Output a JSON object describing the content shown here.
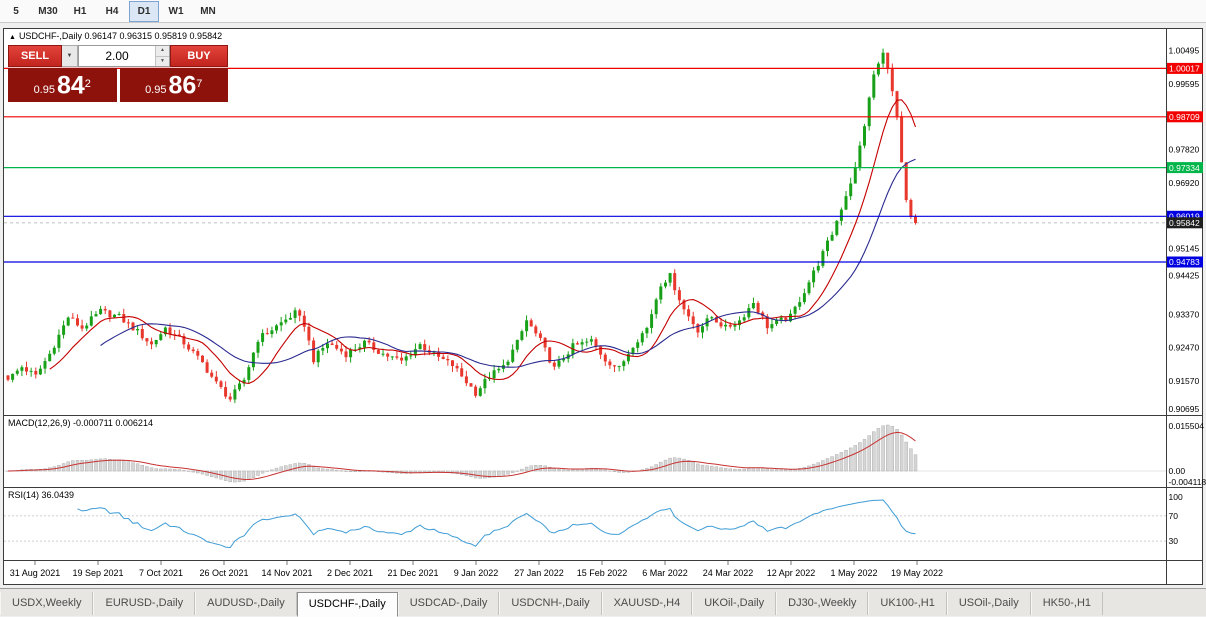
{
  "toolbar": {
    "timeframes": [
      {
        "label": "5",
        "active": false
      },
      {
        "label": "M30",
        "active": false
      },
      {
        "label": "H1",
        "active": false
      },
      {
        "label": "H4",
        "active": false
      },
      {
        "label": "D1",
        "active": true
      },
      {
        "label": "W1",
        "active": false
      },
      {
        "label": "MN",
        "active": false
      }
    ]
  },
  "symbol_header": {
    "marker": "▲",
    "symbol": "USDCHF-,Daily",
    "ohlc": "0.96147 0.96315 0.95819 0.95842"
  },
  "trade_panel": {
    "sell_label": "SELL",
    "buy_label": "BUY",
    "lot_size": "2.00",
    "dropdown_glyph": "▼",
    "spin_up_glyph": "▲",
    "spin_down_glyph": "▼",
    "bid": {
      "small": "0.95",
      "big": "84",
      "sup": "2"
    },
    "ask": {
      "small": "0.95",
      "big": "86",
      "sup": "7"
    }
  },
  "indicators": {
    "macd": {
      "label": "MACD(12,26,9)",
      "values": "-0.000711 0.006214",
      "axis_labels": [
        "0.015504",
        "0.00",
        "-0.004118"
      ],
      "histogram_color": "#D6D6D6",
      "signal_color": "#C83232"
    },
    "rsi": {
      "label": "RSI(14)",
      "value": "36.0439",
      "line_color": "#3E9CD6",
      "levels": [
        {
          "value": 100,
          "dashed": false
        },
        {
          "value": 70,
          "dashed": true
        },
        {
          "value": 30,
          "dashed": true
        }
      ]
    }
  },
  "tabs": [
    {
      "label": "USDX,Weekly",
      "active": false
    },
    {
      "label": "EURUSD-,Daily",
      "active": false
    },
    {
      "label": "AUDUSD-,Daily",
      "active": false
    },
    {
      "label": "USDCHF-,Daily",
      "active": true
    },
    {
      "label": "USDCAD-,Daily",
      "active": false
    },
    {
      "label": "USDCNH-,Daily",
      "active": false
    },
    {
      "label": "XAUUSD-,H4",
      "active": false
    },
    {
      "label": "UKOil-,Daily",
      "active": false
    },
    {
      "label": "DJ30-,Weekly",
      "active": false
    },
    {
      "label": "UK100-,H1",
      "active": false
    },
    {
      "label": "USOil-,Daily",
      "active": false
    },
    {
      "label": "HK50-,H1",
      "active": false
    }
  ],
  "chart_data": {
    "type": "candlestick",
    "symbol": "USDCHF",
    "timeframe": "Daily",
    "current_bar": {
      "open": 0.96147,
      "high": 0.96315,
      "low": 0.95819,
      "close": 0.95842
    },
    "ylim": [
      0.90695,
      1.00495
    ],
    "up_color": "#18A118",
    "down_color": "#E8372C",
    "ma_fast_color": "#C40000",
    "ma_slow_color": "#2A2A90",
    "x_labels": [
      "31 Aug 2021",
      "19 Sep 2021",
      "7 Oct 2021",
      "26 Oct 2021",
      "14 Nov 2021",
      "2 Dec 2021",
      "21 Dec 2021",
      "9 Jan 2022",
      "27 Jan 2022",
      "15 Feb 2022",
      "6 Mar 2022",
      "24 Mar 2022",
      "12 Apr 2022",
      "1 May 2022",
      "19 May 2022"
    ],
    "levels": [
      {
        "price": 1.00017,
        "color": "#F20000"
      },
      {
        "price": 0.98709,
        "color": "#F20000"
      },
      {
        "price": 0.97334,
        "color": "#00B64A"
      },
      {
        "price": 0.96019,
        "color": "#0000E0"
      },
      {
        "price": 0.94783,
        "color": "#0000E0"
      }
    ],
    "current_price": {
      "price": 0.95842,
      "color": "#1F1F1F"
    },
    "axis_plain_labels": [
      1.00495,
      0.99595,
      0.9782,
      0.9692,
      0.95145,
      0.94425,
      0.9337,
      0.9247,
      0.9157,
      0.90695
    ],
    "close_waypoints": [
      [
        0,
        0.916
      ],
      [
        3,
        0.9195
      ],
      [
        6,
        0.917
      ],
      [
        9,
        0.923
      ],
      [
        13,
        0.933
      ],
      [
        16,
        0.93
      ],
      [
        20,
        0.9345
      ],
      [
        24,
        0.933
      ],
      [
        28,
        0.929
      ],
      [
        31,
        0.9255
      ],
      [
        34,
        0.93
      ],
      [
        38,
        0.926
      ],
      [
        42,
        0.9205
      ],
      [
        45,
        0.915
      ],
      [
        48,
        0.9108
      ],
      [
        51,
        0.916
      ],
      [
        54,
        0.927
      ],
      [
        58,
        0.9305
      ],
      [
        62,
        0.934
      ],
      [
        64,
        0.931
      ],
      [
        66,
        0.9215
      ],
      [
        69,
        0.926
      ],
      [
        73,
        0.923
      ],
      [
        77,
        0.926
      ],
      [
        81,
        0.923
      ],
      [
        85,
        0.921
      ],
      [
        89,
        0.9255
      ],
      [
        93,
        0.922
      ],
      [
        96,
        0.92
      ],
      [
        101,
        0.9125
      ],
      [
        104,
        0.917
      ],
      [
        107,
        0.9195
      ],
      [
        110,
        0.926
      ],
      [
        112,
        0.932
      ],
      [
        115,
        0.9265
      ],
      [
        118,
        0.919
      ],
      [
        122,
        0.925
      ],
      [
        126,
        0.9265
      ],
      [
        129,
        0.9215
      ],
      [
        132,
        0.919
      ],
      [
        135,
        0.9255
      ],
      [
        138,
        0.93
      ],
      [
        141,
        0.942
      ],
      [
        143,
        0.944
      ],
      [
        146,
        0.935
      ],
      [
        149,
        0.9295
      ],
      [
        152,
        0.933
      ],
      [
        155,
        0.93
      ],
      [
        158,
        0.932
      ],
      [
        161,
        0.937
      ],
      [
        164,
        0.9305
      ],
      [
        169,
        0.933
      ],
      [
        172,
        0.94
      ],
      [
        175,
        0.9475
      ],
      [
        178,
        0.9555
      ],
      [
        181,
        0.966
      ],
      [
        183,
        0.973
      ],
      [
        185,
        0.985
      ],
      [
        187,
        0.9985
      ],
      [
        189,
        1.004
      ],
      [
        190,
        1.001
      ],
      [
        191,
        0.9935
      ],
      [
        192,
        0.987
      ],
      [
        193,
        0.974
      ],
      [
        194,
        0.964
      ],
      [
        195,
        0.9595
      ],
      [
        196,
        0.95842
      ]
    ]
  }
}
